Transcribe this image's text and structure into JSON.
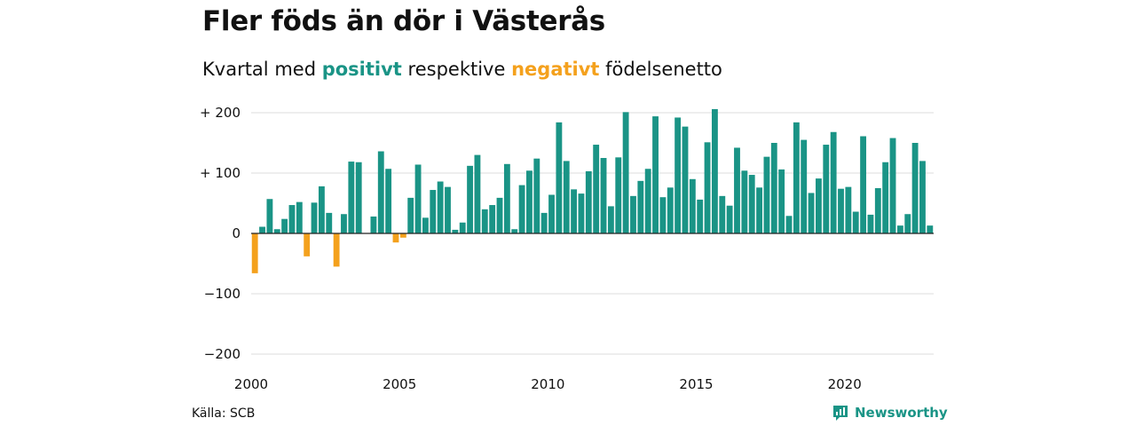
{
  "title": "Fler föds än dör i Västerås",
  "subtitle": {
    "prefix": "Kvartal med",
    "positive": "positivt",
    "middle": "respektive",
    "negative": "negativt",
    "suffix": "födelsenetto"
  },
  "source": "Källa: SCB",
  "brand": {
    "name": "Newsworthy",
    "icon": "newsworthy-logo-icon"
  },
  "colors": {
    "positive": "#1a9486",
    "negative": "#f4a11d",
    "grid": "#dddddd",
    "axis": "#222222"
  },
  "chart_data": {
    "type": "bar",
    "title": "Fler föds än dör i Västerås",
    "xlabel": "",
    "ylabel": "",
    "ylim": [
      -200,
      200
    ],
    "y_ticks": [
      200,
      100,
      0,
      -100,
      -200
    ],
    "y_tick_labels": [
      "+ 200",
      "+ 100",
      "0",
      "−100",
      "−200"
    ],
    "x_ticks": [
      2000,
      2005,
      2010,
      2015,
      2020
    ],
    "x_tick_labels": [
      "2000",
      "2005",
      "2010",
      "2015",
      "2020"
    ],
    "x_start": 2000,
    "x_end": 2023,
    "grid": true,
    "series": [
      {
        "values": [
          -66,
          11,
          57,
          7,
          24,
          47,
          52,
          -38,
          51,
          78,
          34,
          -55,
          32,
          119,
          118,
          0,
          28,
          136,
          107,
          -15,
          -7,
          59,
          114,
          26,
          72,
          86,
          77,
          6,
          18,
          112,
          130,
          40,
          47,
          59,
          115,
          7,
          80,
          104,
          124,
          34,
          64,
          184,
          120,
          73,
          66,
          103,
          147,
          125,
          45,
          126,
          201,
          62,
          87,
          107,
          194,
          60,
          76,
          192,
          177,
          90,
          56,
          151,
          206,
          62,
          46,
          142,
          104,
          97,
          76,
          127,
          150,
          106,
          29,
          184,
          155,
          67,
          91,
          147,
          168,
          74,
          77,
          36,
          161,
          31,
          75,
          118,
          158,
          13,
          32,
          150,
          120,
          13
        ]
      }
    ]
  }
}
